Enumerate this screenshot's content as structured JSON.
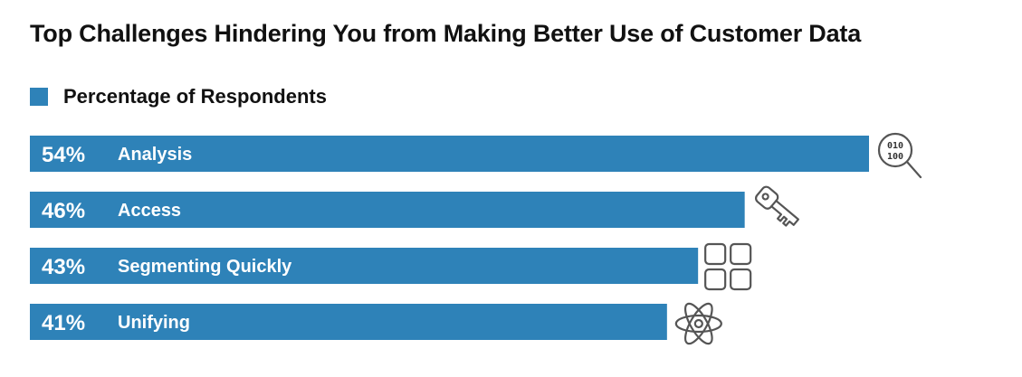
{
  "chart_data": {
    "type": "bar",
    "orientation": "horizontal",
    "title": "Top Challenges Hindering You from Making Better Use of Customer Data",
    "legend_position": "top-left",
    "series": [
      {
        "name": "Percentage of Respondents",
        "color": "#2E82B8",
        "values": [
          54,
          46,
          43,
          41
        ]
      }
    ],
    "categories": [
      "Analysis",
      "Access",
      "Segmenting Quickly",
      "Unifying"
    ],
    "value_labels": [
      "54%",
      "46%",
      "43%",
      "41%"
    ],
    "icons": [
      "binary-magnifier-icon",
      "key-icon",
      "grid-squares-icon",
      "atom-icon"
    ],
    "icon_texts": {
      "binary_line_1": "010",
      "binary_line_2": "100"
    },
    "grid": false,
    "xlim": [
      0,
      54
    ]
  }
}
